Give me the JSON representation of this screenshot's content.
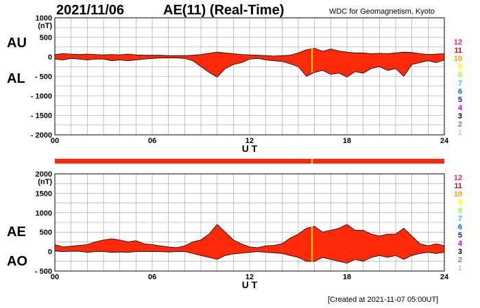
{
  "header": {
    "date": "2021/11/06",
    "title": "AE(11) (Real-Time)",
    "source": "WDC for Geomagnetism, Kyoto"
  },
  "footer": {
    "created": "[Created at 2021-11-07 05:00UT]"
  },
  "panel1": {
    "label_top": "AU",
    "label_bottom": "AL"
  },
  "panel2": {
    "label_top": "AE",
    "label_bottom": "AO"
  },
  "legend": {
    "items": [
      {
        "text": "12",
        "color": "#ff1a8c"
      },
      {
        "text": "11",
        "color": "#e60000"
      },
      {
        "text": "10",
        "color": "#ff9900"
      },
      {
        "text": "9",
        "color": "#ffff00"
      },
      {
        "text": "8",
        "color": "#99ff33"
      },
      {
        "text": "7",
        "color": "#33cccc"
      },
      {
        "text": "6",
        "color": "#0066ff"
      },
      {
        "text": "5",
        "color": "#1a1aa0"
      },
      {
        "text": "4",
        "color": "#cc00cc"
      },
      {
        "text": "3",
        "color": "#000000"
      },
      {
        "text": "2",
        "color": "#808080"
      },
      {
        "text": "1",
        "color": "#c8c8c8"
      }
    ]
  },
  "colors": {
    "fill": "#ff2a0a",
    "bar": "#ff2a0a",
    "highlight": "#ffd400",
    "grid": "#999999",
    "outline": "#000000"
  },
  "chart_data": [
    {
      "type": "area",
      "name_top": "AU",
      "name_bottom": "AL",
      "xlabel": "U T",
      "ylabel": "(nT)",
      "xlim": [
        0,
        24
      ],
      "ylim": [
        -2000,
        1000
      ],
      "xticks": [
        "00",
        "06",
        "12",
        "18",
        "24"
      ],
      "yticks": [
        "1000",
        "500",
        "0",
        "- 500",
        "- 1000",
        "- 1500",
        "- 2000"
      ],
      "ytick_values": [
        1000,
        500,
        0,
        -500,
        -1000,
        -1500,
        -2000
      ],
      "highlight_hour": 15.85,
      "x": [
        0,
        0.5,
        1,
        1.5,
        2,
        2.5,
        3,
        3.5,
        4,
        4.5,
        5,
        5.5,
        6,
        6.5,
        7,
        7.5,
        8,
        8.5,
        9,
        9.5,
        10,
        10.5,
        11,
        11.5,
        12,
        12.5,
        13,
        13.5,
        14,
        14.5,
        15,
        15.5,
        16,
        16.5,
        17,
        17.5,
        18,
        18.5,
        19,
        19.5,
        20,
        20.5,
        21,
        21.5,
        22,
        22.5,
        23,
        23.5,
        24
      ],
      "upper": [
        60,
        80,
        70,
        60,
        70,
        60,
        50,
        60,
        50,
        70,
        50,
        40,
        40,
        40,
        30,
        30,
        30,
        40,
        60,
        90,
        120,
        100,
        80,
        60,
        50,
        40,
        30,
        20,
        30,
        40,
        100,
        180,
        220,
        140,
        200,
        150,
        120,
        100,
        100,
        80,
        90,
        80,
        100,
        120,
        110,
        80,
        60,
        70,
        80
      ],
      "lower": [
        -60,
        -80,
        -40,
        -60,
        -80,
        -60,
        -60,
        -100,
        -80,
        -100,
        -80,
        -60,
        -40,
        -30,
        -30,
        -30,
        -40,
        -100,
        -250,
        -400,
        -520,
        -300,
        -200,
        -150,
        -60,
        -40,
        -80,
        -100,
        -120,
        -180,
        -250,
        -500,
        -400,
        -350,
        -450,
        -420,
        -520,
        -380,
        -420,
        -300,
        -250,
        -350,
        -300,
        -500,
        -200,
        -150,
        -100,
        -150,
        -80
      ]
    },
    {
      "type": "area",
      "name_top": "AE",
      "name_bottom": "AO",
      "xlabel": "U T",
      "ylabel": "(nT)",
      "xlim": [
        0,
        24
      ],
      "ylim": [
        -500,
        2000
      ],
      "xticks": [
        "00",
        "06",
        "12",
        "18",
        "24"
      ],
      "yticks": [
        "2000",
        "1500",
        "1000",
        "500",
        "0",
        "- 500"
      ],
      "ytick_values": [
        2000,
        1500,
        1000,
        500,
        0,
        -500
      ],
      "highlight_hour": 15.85,
      "x": [
        0,
        0.5,
        1,
        1.5,
        2,
        2.5,
        3,
        3.5,
        4,
        4.5,
        5,
        5.5,
        6,
        6.5,
        7,
        7.5,
        8,
        8.5,
        9,
        9.5,
        10,
        10.5,
        11,
        11.5,
        12,
        12.5,
        13,
        13.5,
        14,
        14.5,
        15,
        15.5,
        16,
        16.5,
        17,
        17.5,
        18,
        18.5,
        19,
        19.5,
        20,
        20.5,
        21,
        21.5,
        22,
        22.5,
        23,
        23.5,
        24
      ],
      "upper": [
        180,
        120,
        140,
        160,
        180,
        250,
        300,
        330,
        300,
        250,
        280,
        200,
        180,
        150,
        120,
        100,
        150,
        250,
        300,
        450,
        700,
        500,
        300,
        200,
        120,
        100,
        150,
        160,
        200,
        350,
        450,
        600,
        650,
        500,
        550,
        600,
        700,
        550,
        550,
        450,
        400,
        450,
        450,
        600,
        400,
        200,
        150,
        200,
        150
      ],
      "lower": [
        20,
        0,
        10,
        10,
        -20,
        0,
        0,
        -20,
        -10,
        -20,
        0,
        0,
        0,
        0,
        -10,
        0,
        0,
        -50,
        -100,
        -150,
        -200,
        -100,
        -60,
        -40,
        -20,
        0,
        -20,
        -30,
        -50,
        -100,
        -150,
        -250,
        -250,
        -150,
        -200,
        -250,
        -300,
        -200,
        -250,
        -150,
        -100,
        -150,
        -100,
        -200,
        -100,
        -50,
        -20,
        -50,
        -20
      ]
    }
  ]
}
